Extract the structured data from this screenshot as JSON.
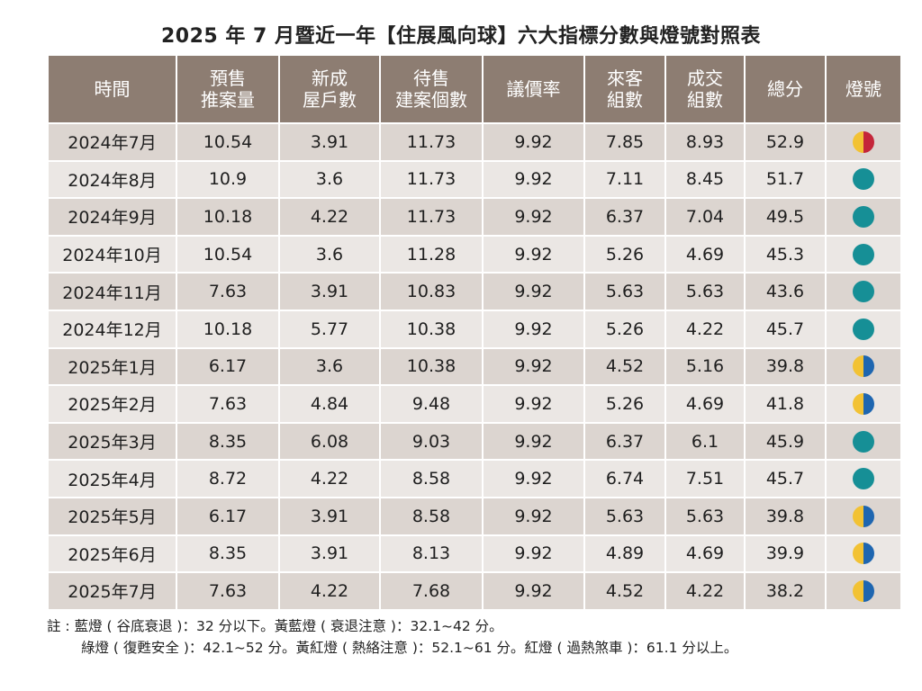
{
  "title": "2025 年 7 月暨近一年【住展風向球】六大指標分數與燈號對照表",
  "headers": [
    [
      "時間"
    ],
    [
      "預售",
      "推案量"
    ],
    [
      "新成",
      "屋戶數"
    ],
    [
      "待售",
      "建案個數"
    ],
    [
      "議價率"
    ],
    [
      "來客",
      "組數"
    ],
    [
      "成交",
      "組數"
    ],
    [
      "總分"
    ],
    [
      "燈號"
    ]
  ],
  "colors": {
    "header_bg": "#8d7d72",
    "row_odd": "#dcd5d0",
    "row_even": "#ebe7e4",
    "yellow": "#f2c234",
    "red": "#c4263a",
    "blue": "#1e66b0",
    "green": "#168f96"
  },
  "rows": [
    {
      "period": "2024年7月",
      "presale": "10.54",
      "new_units": "3.91",
      "unsold": "11.73",
      "bargain": "9.92",
      "visitors": "7.85",
      "deals": "8.93",
      "total": "52.9",
      "light": "yellow-red"
    },
    {
      "period": "2024年8月",
      "presale": "10.9",
      "new_units": "3.6",
      "unsold": "11.73",
      "bargain": "9.92",
      "visitors": "7.11",
      "deals": "8.45",
      "total": "51.7",
      "light": "green"
    },
    {
      "period": "2024年9月",
      "presale": "10.18",
      "new_units": "4.22",
      "unsold": "11.73",
      "bargain": "9.92",
      "visitors": "6.37",
      "deals": "7.04",
      "total": "49.5",
      "light": "green"
    },
    {
      "period": "2024年10月",
      "presale": "10.54",
      "new_units": "3.6",
      "unsold": "11.28",
      "bargain": "9.92",
      "visitors": "5.26",
      "deals": "4.69",
      "total": "45.3",
      "light": "green"
    },
    {
      "period": "2024年11月",
      "presale": "7.63",
      "new_units": "3.91",
      "unsold": "10.83",
      "bargain": "9.92",
      "visitors": "5.63",
      "deals": "5.63",
      "total": "43.6",
      "light": "green"
    },
    {
      "period": "2024年12月",
      "presale": "10.18",
      "new_units": "5.77",
      "unsold": "10.38",
      "bargain": "9.92",
      "visitors": "5.26",
      "deals": "4.22",
      "total": "45.7",
      "light": "green"
    },
    {
      "period": "2025年1月",
      "presale": "6.17",
      "new_units": "3.6",
      "unsold": "10.38",
      "bargain": "9.92",
      "visitors": "4.52",
      "deals": "5.16",
      "total": "39.8",
      "light": "yellow-blue"
    },
    {
      "period": "2025年2月",
      "presale": "7.63",
      "new_units": "4.84",
      "unsold": "9.48",
      "bargain": "9.92",
      "visitors": "5.26",
      "deals": "4.69",
      "total": "41.8",
      "light": "yellow-blue"
    },
    {
      "period": "2025年3月",
      "presale": "8.35",
      "new_units": "6.08",
      "unsold": "9.03",
      "bargain": "9.92",
      "visitors": "6.37",
      "deals": "6.1",
      "total": "45.9",
      "light": "green"
    },
    {
      "period": "2025年4月",
      "presale": "8.72",
      "new_units": "4.22",
      "unsold": "8.58",
      "bargain": "9.92",
      "visitors": "6.74",
      "deals": "7.51",
      "total": "45.7",
      "light": "green"
    },
    {
      "period": "2025年5月",
      "presale": "6.17",
      "new_units": "3.91",
      "unsold": "8.58",
      "bargain": "9.92",
      "visitors": "5.63",
      "deals": "5.63",
      "total": "39.8",
      "light": "yellow-blue"
    },
    {
      "period": "2025年6月",
      "presale": "8.35",
      "new_units": "3.91",
      "unsold": "8.13",
      "bargain": "9.92",
      "visitors": "4.89",
      "deals": "4.69",
      "total": "39.9",
      "light": "yellow-blue"
    },
    {
      "period": "2025年7月",
      "presale": "7.63",
      "new_units": "4.22",
      "unsold": "7.68",
      "bargain": "9.92",
      "visitors": "4.52",
      "deals": "4.22",
      "total": "38.2",
      "light": "yellow-blue"
    }
  ],
  "notes": {
    "line1": "註 : 藍燈 ( 谷底衰退 )：32 分以下。黃藍燈 ( 衰退注意 )：32.1~42 分。",
    "line2": "綠燈 ( 復甦安全 )：42.1~52 分。黃紅燈 ( 熱絡注意 )：52.1~61 分。紅燈 ( 過熱煞車 )：61.1 分以上。"
  }
}
